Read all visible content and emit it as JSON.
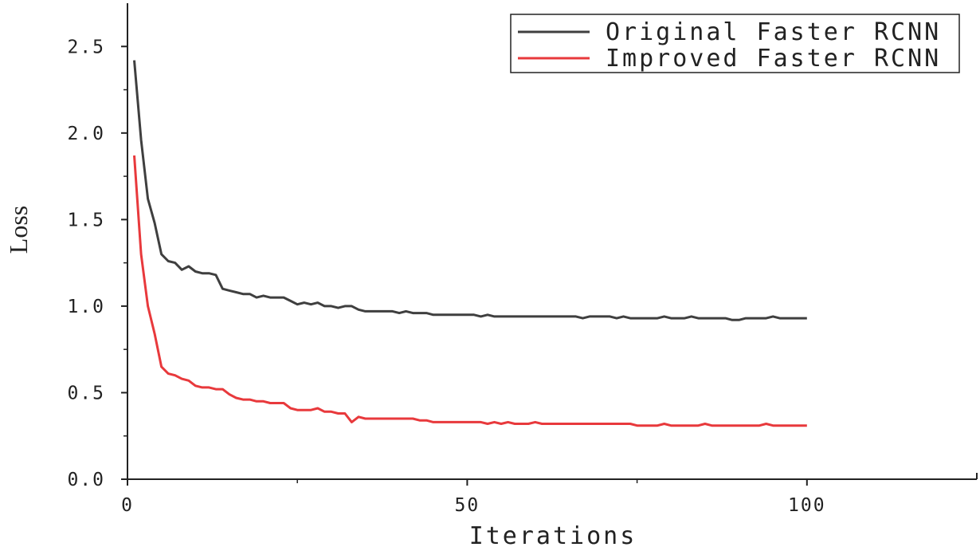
{
  "chart_data": {
    "type": "line",
    "xlabel": "Iterations",
    "ylabel": "Loss",
    "xlim": [
      0,
      125
    ],
    "ylim": [
      0,
      2.75
    ],
    "grid": false,
    "legend_position": "top-right",
    "x_ticks": [
      0,
      50,
      100
    ],
    "x_tick_labels": [
      "0",
      "50",
      "100"
    ],
    "y_ticks": [
      0,
      0.5,
      1.0,
      1.5,
      2.0,
      2.5
    ],
    "y_tick_labels": [
      "0.0",
      "0.5",
      "1.0",
      "1.5",
      "2.0",
      "2.5"
    ],
    "x": [
      1,
      2,
      3,
      4,
      5,
      6,
      7,
      8,
      9,
      10,
      11,
      12,
      13,
      14,
      15,
      16,
      17,
      18,
      19,
      20,
      21,
      22,
      23,
      24,
      25,
      26,
      27,
      28,
      29,
      30,
      31,
      32,
      33,
      34,
      35,
      36,
      37,
      38,
      39,
      40,
      41,
      42,
      43,
      44,
      45,
      46,
      47,
      48,
      49,
      50,
      51,
      52,
      53,
      54,
      55,
      56,
      57,
      58,
      59,
      60,
      61,
      62,
      63,
      64,
      65,
      66,
      67,
      68,
      69,
      70,
      71,
      72,
      73,
      74,
      75,
      76,
      77,
      78,
      79,
      80,
      81,
      82,
      83,
      84,
      85,
      86,
      87,
      88,
      89,
      90,
      91,
      92,
      93,
      94,
      95,
      96,
      97,
      98,
      99,
      100
    ],
    "series": [
      {
        "name": "Original Faster RCNN",
        "color": "#3f3f3f",
        "values": [
          2.42,
          1.96,
          1.62,
          1.48,
          1.3,
          1.26,
          1.25,
          1.21,
          1.23,
          1.2,
          1.19,
          1.19,
          1.18,
          1.1,
          1.09,
          1.08,
          1.07,
          1.07,
          1.05,
          1.06,
          1.05,
          1.05,
          1.05,
          1.03,
          1.01,
          1.02,
          1.01,
          1.02,
          1.0,
          1.0,
          0.99,
          1.0,
          1.0,
          0.98,
          0.97,
          0.97,
          0.97,
          0.97,
          0.97,
          0.96,
          0.97,
          0.96,
          0.96,
          0.96,
          0.95,
          0.95,
          0.95,
          0.95,
          0.95,
          0.95,
          0.95,
          0.94,
          0.95,
          0.94,
          0.94,
          0.94,
          0.94,
          0.94,
          0.94,
          0.94,
          0.94,
          0.94,
          0.94,
          0.94,
          0.94,
          0.94,
          0.93,
          0.94,
          0.94,
          0.94,
          0.94,
          0.93,
          0.94,
          0.93,
          0.93,
          0.93,
          0.93,
          0.93,
          0.94,
          0.93,
          0.93,
          0.93,
          0.94,
          0.93,
          0.93,
          0.93,
          0.93,
          0.93,
          0.92,
          0.92,
          0.93,
          0.93,
          0.93,
          0.93,
          0.94,
          0.93,
          0.93,
          0.93,
          0.93,
          0.93
        ]
      },
      {
        "name": "Improved Faster RCNN",
        "color": "#e8393c",
        "values": [
          1.87,
          1.3,
          1.0,
          0.84,
          0.65,
          0.61,
          0.6,
          0.58,
          0.57,
          0.54,
          0.53,
          0.53,
          0.52,
          0.52,
          0.49,
          0.47,
          0.46,
          0.46,
          0.45,
          0.45,
          0.44,
          0.44,
          0.44,
          0.41,
          0.4,
          0.4,
          0.4,
          0.41,
          0.39,
          0.39,
          0.38,
          0.38,
          0.33,
          0.36,
          0.35,
          0.35,
          0.35,
          0.35,
          0.35,
          0.35,
          0.35,
          0.35,
          0.34,
          0.34,
          0.33,
          0.33,
          0.33,
          0.33,
          0.33,
          0.33,
          0.33,
          0.33,
          0.32,
          0.33,
          0.32,
          0.33,
          0.32,
          0.32,
          0.32,
          0.33,
          0.32,
          0.32,
          0.32,
          0.32,
          0.32,
          0.32,
          0.32,
          0.32,
          0.32,
          0.32,
          0.32,
          0.32,
          0.32,
          0.32,
          0.31,
          0.31,
          0.31,
          0.31,
          0.32,
          0.31,
          0.31,
          0.31,
          0.31,
          0.31,
          0.32,
          0.31,
          0.31,
          0.31,
          0.31,
          0.31,
          0.31,
          0.31,
          0.31,
          0.32,
          0.31,
          0.31,
          0.31,
          0.31,
          0.31,
          0.31
        ]
      }
    ]
  }
}
